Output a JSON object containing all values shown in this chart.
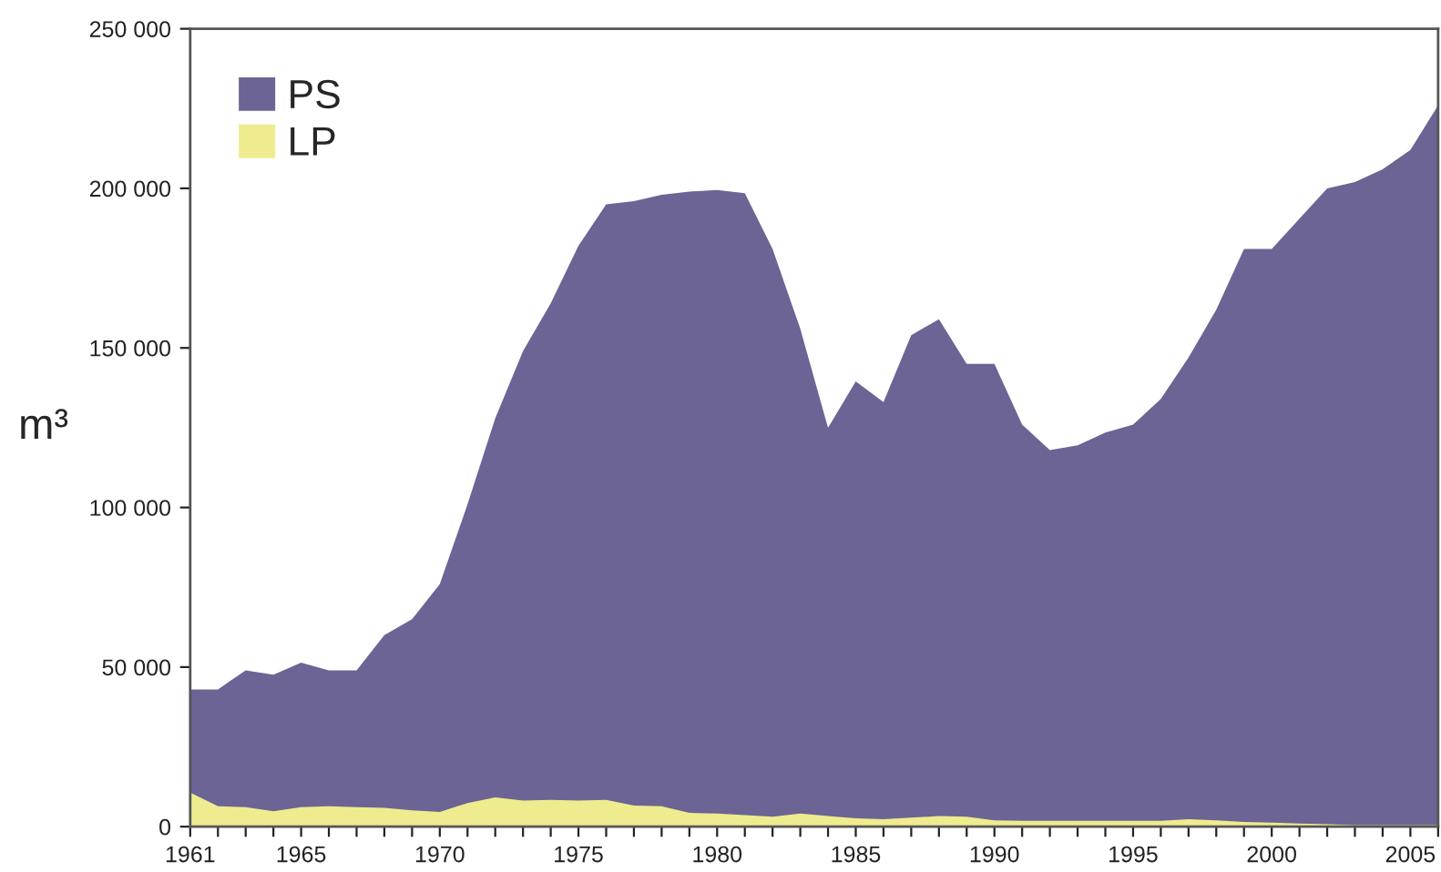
{
  "chart_data": {
    "type": "area",
    "ylabel": "m³",
    "x": [
      1961,
      1962,
      1963,
      1964,
      1965,
      1966,
      1967,
      1968,
      1969,
      1970,
      1971,
      1972,
      1973,
      1974,
      1975,
      1976,
      1977,
      1978,
      1979,
      1980,
      1981,
      1982,
      1983,
      1984,
      1985,
      1986,
      1987,
      1988,
      1989,
      1990,
      1991,
      1992,
      1993,
      1994,
      1995,
      1996,
      1997,
      1998,
      1999,
      2000,
      2001,
      2002,
      2003,
      2004,
      2005,
      2006
    ],
    "series": [
      {
        "name": "PS",
        "color": "#6b6494",
        "values": [
          43000,
          43000,
          49000,
          47600,
          51400,
          49000,
          49000,
          60000,
          65000,
          76000,
          101000,
          128000,
          149000,
          164000,
          182000,
          195000,
          196000,
          198000,
          199000,
          199500,
          198500,
          181000,
          156000,
          125000,
          139500,
          133000,
          154000,
          159000,
          145000,
          145000,
          126000,
          118000,
          119500,
          123500,
          126000,
          134000,
          147000,
          162000,
          181000,
          181000,
          190500,
          200000,
          202000,
          206000,
          212000,
          226000
        ]
      },
      {
        "name": "LP",
        "color": "#eeec8e",
        "values": [
          10700,
          6400,
          6100,
          4800,
          6100,
          6400,
          6100,
          5900,
          5100,
          4600,
          7400,
          9200,
          8200,
          8400,
          8200,
          8400,
          6600,
          6400,
          4300,
          4100,
          3600,
          3100,
          4100,
          3300,
          2600,
          2300,
          2800,
          3300,
          3100,
          2000,
          1800,
          1800,
          1800,
          1800,
          1800,
          1800,
          2300,
          2000,
          1500,
          1300,
          1000,
          800,
          500,
          500,
          500,
          500
        ]
      }
    ],
    "xlim": [
      1961,
      2006
    ],
    "xticks": [
      1961,
      {
        "value": 1962,
        "label": null
      },
      {
        "value": 1963,
        "label": null
      },
      {
        "value": 1964,
        "label": null
      },
      1965,
      {
        "value": 1966,
        "label": null
      },
      {
        "value": 1967,
        "label": null
      },
      {
        "value": 1968,
        "label": null
      },
      {
        "value": 1969,
        "label": null
      },
      1970,
      {
        "value": 1971,
        "label": null
      },
      {
        "value": 1972,
        "label": null
      },
      {
        "value": 1973,
        "label": null
      },
      {
        "value": 1974,
        "label": null
      },
      1975,
      {
        "value": 1976,
        "label": null
      },
      {
        "value": 1977,
        "label": null
      },
      {
        "value": 1978,
        "label": null
      },
      {
        "value": 1979,
        "label": null
      },
      1980,
      {
        "value": 1981,
        "label": null
      },
      {
        "value": 1982,
        "label": null
      },
      {
        "value": 1983,
        "label": null
      },
      {
        "value": 1984,
        "label": null
      },
      1985,
      {
        "value": 1986,
        "label": null
      },
      {
        "value": 1987,
        "label": null
      },
      {
        "value": 1988,
        "label": null
      },
      {
        "value": 1989,
        "label": null
      },
      1990,
      {
        "value": 1991,
        "label": null
      },
      {
        "value": 1992,
        "label": null
      },
      {
        "value": 1993,
        "label": null
      },
      {
        "value": 1994,
        "label": null
      },
      1995,
      {
        "value": 1996,
        "label": null
      },
      {
        "value": 1997,
        "label": null
      },
      {
        "value": 1998,
        "label": null
      },
      {
        "value": 1999,
        "label": null
      },
      2000,
      {
        "value": 2001,
        "label": null
      },
      {
        "value": 2002,
        "label": null
      },
      {
        "value": 2003,
        "label": null
      },
      {
        "value": 2004,
        "label": null
      },
      2005,
      {
        "value": 2006,
        "label": null
      }
    ],
    "ylim": [
      0,
      250000
    ],
    "yticks": [
      0,
      {
        "value": 50000,
        "label": "50 000"
      },
      {
        "value": 100000,
        "label": "100 000"
      },
      {
        "value": 150000,
        "label": "150 000"
      },
      {
        "value": 200000,
        "label": "200 000"
      },
      {
        "value": 250000,
        "label": "250 000"
      }
    ],
    "grid": false,
    "legend": "top left"
  }
}
